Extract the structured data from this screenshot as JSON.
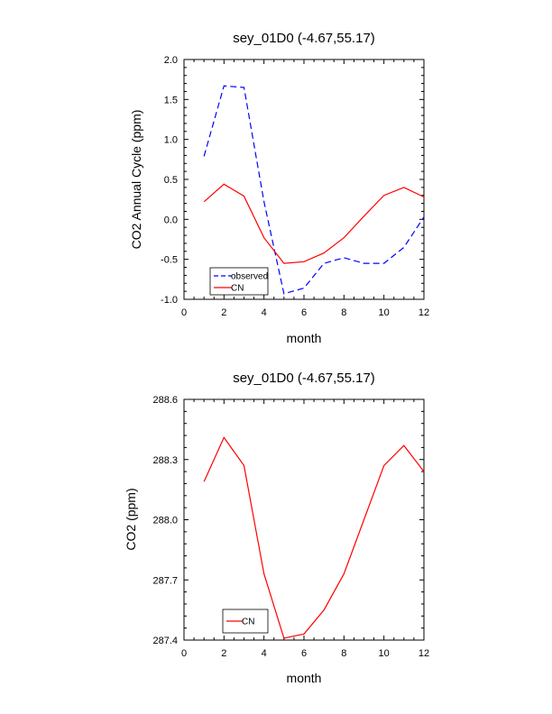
{
  "chart_data": [
    {
      "type": "line",
      "title": "sey_01D0 (-4.67,55.17)",
      "xlabel": "month",
      "ylabel": "CO2 Annual Cycle (ppm)",
      "xlim": [
        0,
        12
      ],
      "ylim": [
        -1.0,
        2.0
      ],
      "x_ticks": [
        0,
        2,
        4,
        6,
        8,
        10,
        12
      ],
      "x_tick_labels": [
        "0",
        "2",
        "4",
        "6",
        "8",
        "10",
        "12"
      ],
      "y_ticks": [
        -1.0,
        -0.5,
        0.0,
        0.5,
        1.0,
        1.5,
        2.0
      ],
      "y_tick_labels": [
        "-1.0",
        "-0.5",
        "0.0",
        "0.5",
        "1.0",
        "1.5",
        "2.0"
      ],
      "grid": false,
      "legend_position": "bottom-left",
      "x": [
        1,
        2,
        3,
        4,
        5,
        6,
        7,
        8,
        9,
        10,
        11,
        12
      ],
      "series": [
        {
          "name": "observed",
          "color": "#0000ff",
          "dash": "dashed",
          "values": [
            0.79,
            1.67,
            1.65,
            0.22,
            -0.93,
            -0.86,
            -0.55,
            -0.48,
            -0.55,
            -0.55,
            -0.35,
            0.03
          ]
        },
        {
          "name": "CN",
          "color": "#ff0000",
          "dash": "solid",
          "values": [
            0.22,
            0.44,
            0.29,
            -0.23,
            -0.55,
            -0.53,
            -0.42,
            -0.23,
            0.04,
            0.3,
            0.4,
            0.28
          ]
        }
      ]
    },
    {
      "type": "line",
      "title": "sey_01D0 (-4.67,55.17)",
      "xlabel": "month",
      "ylabel": "CO2 (ppm)",
      "xlim": [
        0,
        12
      ],
      "ylim": [
        287.4,
        288.6
      ],
      "x_ticks": [
        0,
        2,
        4,
        6,
        8,
        10,
        12
      ],
      "x_tick_labels": [
        "0",
        "2",
        "4",
        "6",
        "8",
        "10",
        "12"
      ],
      "y_ticks": [
        287.4,
        287.7,
        288.0,
        288.3,
        288.6
      ],
      "y_tick_labels": [
        "287.4",
        "287.7",
        "288.0",
        "288.3",
        "288.6"
      ],
      "grid": false,
      "legend_position": "bottom-left",
      "x": [
        1,
        2,
        3,
        4,
        5,
        6,
        7,
        8,
        9,
        10,
        11,
        12
      ],
      "series": [
        {
          "name": "CN",
          "color": "#ff0000",
          "dash": "solid",
          "values": [
            288.19,
            288.41,
            288.27,
            287.73,
            287.41,
            287.43,
            287.55,
            287.73,
            288.0,
            288.27,
            288.37,
            288.24
          ]
        }
      ]
    }
  ]
}
